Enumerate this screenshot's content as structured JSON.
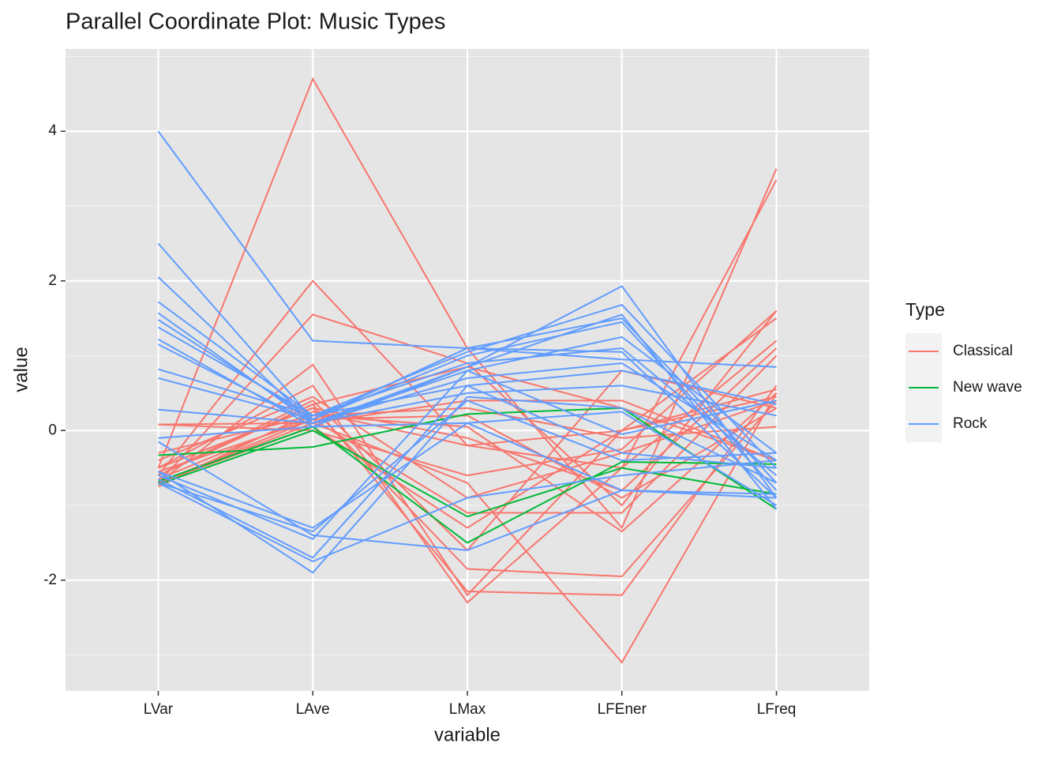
{
  "chart_data": {
    "type": "parallel",
    "title": "Parallel Coordinate Plot: Music Types",
    "x_label": "variable",
    "y_label": "value",
    "categories": [
      "LVar",
      "LAve",
      "LMax",
      "LFEner",
      "LFreq"
    ],
    "ylim": [
      -3.48,
      5.1
    ],
    "yticks": [
      -2,
      0,
      2,
      4
    ],
    "yminor": [
      -3,
      -1,
      1,
      3,
      5
    ],
    "grid": true,
    "legend_title": "Type",
    "legend": "right",
    "groups": [
      {
        "name": "Classical",
        "color": "#f8766d",
        "lines": [
          [
            -0.5,
            4.7,
            1.1,
            -1.3,
            3.5
          ],
          [
            -0.6,
            2.0,
            -0.2,
            -0.5,
            3.35
          ],
          [
            -0.7,
            1.55,
            0.9,
            -1.0,
            1.6
          ],
          [
            -0.7,
            0.88,
            -2.2,
            0.0,
            1.5
          ],
          [
            -0.5,
            0.6,
            -2.3,
            -0.5,
            1.2
          ],
          [
            0.08,
            0.1,
            -0.7,
            -3.1,
            0.5
          ],
          [
            -0.6,
            0.35,
            -2.15,
            -2.2,
            0.6
          ],
          [
            -0.5,
            0.3,
            -1.85,
            -1.95,
            0.4
          ],
          [
            -0.6,
            0.4,
            -1.6,
            0.8,
            0.3
          ],
          [
            -0.7,
            0.15,
            -1.1,
            -1.1,
            1.0
          ],
          [
            -0.3,
            0.2,
            0.3,
            -0.1,
            0.05
          ],
          [
            -0.7,
            0.1,
            0.4,
            0.4,
            -0.4
          ],
          [
            -0.5,
            0.3,
            -0.1,
            -0.8,
            1.1
          ],
          [
            -0.65,
            0.2,
            0.05,
            -1.35,
            0.5
          ],
          [
            -0.4,
            0.45,
            -0.9,
            -0.3,
            0.4
          ],
          [
            -0.75,
            0.25,
            -0.2,
            0.0,
            0.55
          ],
          [
            0.08,
            0.0,
            -0.6,
            -0.25,
            1.6
          ],
          [
            -0.55,
            0.15,
            0.2,
            -0.9,
            0.3
          ],
          [
            -0.6,
            0.35,
            0.85,
            0.3,
            -0.4
          ],
          [
            -0.7,
            0.05,
            -1.3,
            0.0,
            0.45
          ]
        ]
      },
      {
        "name": "New wave",
        "color": "#00ba38",
        "lines": [
          [
            -0.33,
            -0.22,
            0.22,
            0.3,
            -1.05
          ],
          [
            -0.72,
            0.0,
            -1.15,
            -0.5,
            -0.85
          ],
          [
            -0.68,
            0.05,
            -1.5,
            -0.42,
            -0.45
          ]
        ]
      },
      {
        "name": "Rock",
        "color": "#619cff",
        "lines": [
          [
            4.0,
            1.2,
            1.1,
            0.95,
            0.85
          ],
          [
            2.5,
            0.15,
            1.1,
            1.5,
            -0.7
          ],
          [
            2.05,
            0.1,
            0.85,
            1.93,
            -0.9
          ],
          [
            1.72,
            0.2,
            1.05,
            1.68,
            -0.5
          ],
          [
            1.57,
            0.1,
            0.8,
            1.25,
            -0.3
          ],
          [
            1.48,
            0.15,
            1.0,
            1.45,
            -0.8
          ],
          [
            1.38,
            0.2,
            0.9,
            1.1,
            -0.6
          ],
          [
            1.22,
            0.05,
            0.85,
            1.55,
            -1.05
          ],
          [
            1.15,
            0.1,
            0.7,
            0.9,
            -0.4
          ],
          [
            0.82,
            0.2,
            0.6,
            0.8,
            0.35
          ],
          [
            0.7,
            0.15,
            1.1,
            1.05,
            -0.9
          ],
          [
            0.28,
            0.1,
            0.5,
            0.6,
            0.2
          ],
          [
            -0.1,
            0.05,
            0.1,
            0.25,
            -1.0
          ],
          [
            -0.55,
            -1.3,
            0.1,
            -0.8,
            -0.85
          ],
          [
            -0.6,
            -1.45,
            0.8,
            -0.05,
            0.4
          ],
          [
            -0.65,
            -1.7,
            0.6,
            -0.3,
            -0.5
          ],
          [
            -0.7,
            -1.75,
            -0.9,
            -0.6,
            -0.4
          ],
          [
            -0.55,
            -1.9,
            0.45,
            0.3,
            -0.7
          ],
          [
            -0.15,
            -1.4,
            -1.6,
            -0.8,
            -0.9
          ],
          [
            -0.7,
            -1.35,
            0.4,
            -0.4,
            -0.3
          ]
        ]
      }
    ]
  }
}
